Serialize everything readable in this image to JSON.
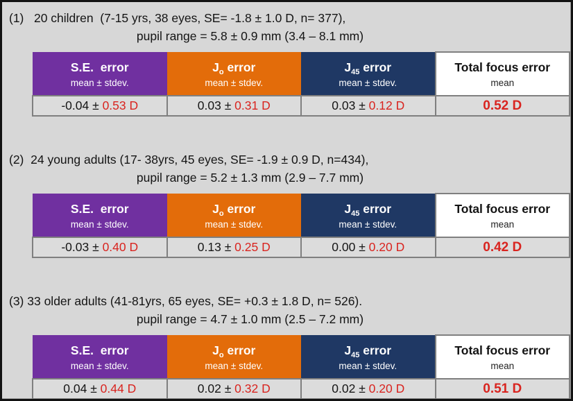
{
  "colors": {
    "purple_header": "#7030A0",
    "orange_header": "#E36C0A",
    "navy_header": "#1F3864",
    "page_background": "#D7D7D7",
    "data_row_background": "#DCDCDC",
    "highlight_red": "#D9241F"
  },
  "columns": [
    {
      "pre": "S.E.  error",
      "sub": "",
      "post": "",
      "sublabel": "mean ± stdev."
    },
    {
      "pre": "J",
      "sub": "o",
      "post": " error",
      "sublabel": "mean ± stdev."
    },
    {
      "pre": "J",
      "sub": "45",
      "post": " error",
      "sublabel": "mean ± stdev."
    },
    {
      "pre": "Total focus error",
      "sub": "",
      "post": "",
      "sublabel": "mean"
    }
  ],
  "sections": [
    {
      "heading_line1": "(1)   20 children  (7-15 yrs, 38 eyes, SE= -1.8 ± 1.0 D, n= 377),",
      "heading_line2": "pupil range = 5.8 ± 0.9 mm (3.4 – 8.1 mm)",
      "row": {
        "se_mean": "-0.04 ± ",
        "se_sd": "0.53 D",
        "j0_mean": "0.03 ± ",
        "j0_sd": "0.31 D",
        "j45_mean": "0.03 ± ",
        "j45_sd": "0.12 D",
        "total": "0.52 D"
      }
    },
    {
      "heading_line1": "(2)  24 young adults (17- 38yrs, 45 eyes, SE= -1.9 ± 0.9 D, n=434),",
      "heading_line2": "pupil range = 5.2 ± 1.3 mm (2.9 – 7.7 mm)",
      "row": {
        "se_mean": "-0.03 ± ",
        "se_sd": "0.40 D",
        "j0_mean": "0.13 ± ",
        "j0_sd": "0.25 D",
        "j45_mean": "0.00 ± ",
        "j45_sd": "0.20 D",
        "total": "0.42 D"
      }
    },
    {
      "heading_line1": "(3) 33 older adults (41-81yrs, 65 eyes, SE= +0.3 ± 1.8 D, n= 526).",
      "heading_line2": "pupil range = 4.7 ± 1.0 mm (2.5 – 7.2 mm)",
      "row": {
        "se_mean": "0.04 ± ",
        "se_sd": "0.44 D",
        "j0_mean": "0.02 ± ",
        "j0_sd": "0.32 D",
        "j45_mean": "0.02 ± ",
        "j45_sd": "0.20 D",
        "total": "0.51 D"
      }
    }
  ]
}
